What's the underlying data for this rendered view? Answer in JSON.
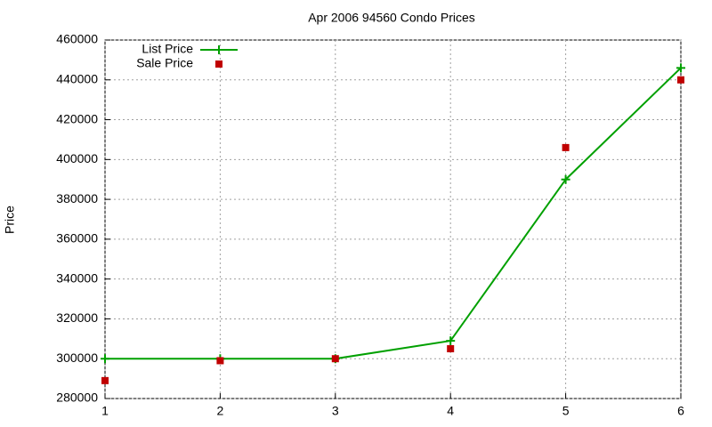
{
  "chart_data": {
    "type": "line",
    "title": "Apr 2006 94560 Condo Prices",
    "y_label": "Price",
    "x": [
      1,
      2,
      3,
      4,
      5,
      6
    ],
    "series": [
      {
        "name": "List Price",
        "color": "#00a000",
        "style": "linespoints",
        "values": [
          300000,
          300000,
          300000,
          309000,
          390000,
          446000
        ]
      },
      {
        "name": "Sale Price",
        "color": "#c00000",
        "style": "points",
        "values": [
          289000,
          299000,
          300000,
          305000,
          406000,
          440000
        ]
      }
    ],
    "xlim": [
      1,
      6
    ],
    "xticks": [
      1,
      2,
      3,
      4,
      5,
      6
    ],
    "ylim": [
      280000,
      460000
    ],
    "yticks": [
      280000,
      300000,
      320000,
      340000,
      360000,
      380000,
      400000,
      420000,
      440000,
      460000
    ],
    "grid": true,
    "legend": "top-left"
  }
}
